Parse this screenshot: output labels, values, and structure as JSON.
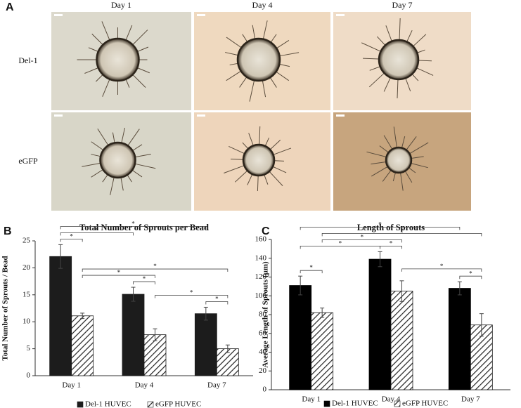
{
  "panel_a": {
    "panel": "A",
    "columns": [
      "Day 1",
      "Day 4",
      "Day 7"
    ],
    "rows": [
      "Del-1",
      "eGFP"
    ]
  },
  "chart_data": [
    {
      "type": "bar",
      "panel": "B",
      "title": "Total Number of Sprouts per Bead",
      "y_label": "Total Number of Sprouts / Bead",
      "categories": [
        "Day 1",
        "Day 4",
        "Day 7"
      ],
      "series": [
        {
          "name": "Del-1 HUVEC",
          "color": "#1c1c1c",
          "fill": "solid",
          "values": [
            22.1,
            15.1,
            11.5
          ],
          "errors": [
            2.2,
            1.3,
            1.2
          ]
        },
        {
          "name": "eGFP HUVEC",
          "color": "#1c1c1c",
          "fill": "hatch",
          "values": [
            11.1,
            7.6,
            5.0
          ],
          "errors": [
            0.5,
            1.1,
            0.7
          ]
        }
      ],
      "ylim": [
        0,
        25
      ],
      "yticks": [
        0,
        5,
        10,
        15,
        20,
        25
      ],
      "legend": "bottom",
      "significance": [
        {
          "from": [
            0,
            0
          ],
          "to": [
            0,
            1
          ],
          "label": "*"
        },
        {
          "from": [
            1,
            0
          ],
          "to": [
            1,
            1
          ],
          "label": "*"
        },
        {
          "from": [
            2,
            0
          ],
          "to": [
            2,
            1
          ],
          "label": "*"
        },
        {
          "from": [
            0,
            1
          ],
          "to": [
            1,
            1
          ],
          "label": "*"
        },
        {
          "from": [
            1,
            1
          ],
          "to": [
            2,
            1
          ],
          "label": "*"
        },
        {
          "from": [
            0,
            0
          ],
          "to": [
            1,
            0
          ],
          "label": "*"
        },
        {
          "from": [
            0,
            1
          ],
          "to": [
            2,
            1
          ],
          "label": "*"
        },
        {
          "from": [
            0,
            0
          ],
          "to": [
            2,
            0
          ],
          "label": "*"
        }
      ]
    },
    {
      "type": "bar",
      "panel": "C",
      "title": "Length of Sprouts",
      "y_label": "Average Length of Sprouts (µm)",
      "categories": [
        "Day 1",
        "Day 4",
        "Day 7"
      ],
      "series": [
        {
          "name": "Del-1 HUVEC",
          "color": "#000000",
          "fill": "solid",
          "values": [
            111,
            139,
            108
          ],
          "errors": [
            10,
            8,
            7
          ]
        },
        {
          "name": "eGFP HUVEC",
          "color": "#1c1c1c",
          "fill": "hatch",
          "values": [
            82,
            105,
            69
          ],
          "errors": [
            5,
            11,
            12
          ]
        }
      ],
      "ylim": [
        0,
        160
      ],
      "yticks": [
        0,
        20,
        40,
        60,
        80,
        100,
        120,
        140,
        160
      ],
      "legend": "bottom",
      "significance": [
        {
          "from": [
            0,
            0
          ],
          "to": [
            0,
            1
          ],
          "label": "*"
        },
        {
          "from": [
            1,
            0
          ],
          "to": [
            1,
            1
          ],
          "label": "*"
        },
        {
          "from": [
            2,
            0
          ],
          "to": [
            2,
            1
          ],
          "label": "*"
        },
        {
          "from": [
            0,
            1
          ],
          "to": [
            1,
            1
          ],
          "label": "*"
        },
        {
          "from": [
            1,
            1
          ],
          "to": [
            2,
            1
          ],
          "label": "*"
        },
        {
          "from": [
            0,
            0
          ],
          "to": [
            1,
            0
          ],
          "label": "*"
        },
        {
          "from": [
            0,
            1
          ],
          "to": [
            2,
            1
          ],
          "label": "*"
        },
        {
          "from": [
            0,
            0
          ],
          "to": [
            2,
            0
          ],
          "label": "*"
        }
      ]
    }
  ]
}
